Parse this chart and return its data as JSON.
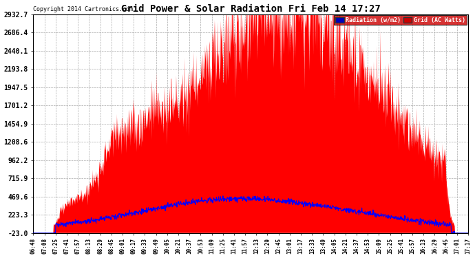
{
  "title": "Grid Power & Solar Radiation Fri Feb 14 17:27",
  "copyright": "Copyright 2014 Cartronics.com",
  "background_color": "#ffffff",
  "plot_bg_color": "#ffffff",
  "yticks": [
    -23.0,
    223.3,
    469.6,
    715.9,
    962.2,
    1208.6,
    1454.9,
    1701.2,
    1947.5,
    2193.8,
    2440.1,
    2686.4,
    2932.7
  ],
  "ymin": -23.0,
  "ymax": 2932.7,
  "legend_radiation_label": "Radiation (w/m2)",
  "legend_grid_label": "Grid (AC Watts)",
  "radiation_color": "#0000ff",
  "grid_fill_color": "#ff0000",
  "xtick_labels": [
    "06:48",
    "07:08",
    "07:25",
    "07:41",
    "07:57",
    "08:13",
    "08:29",
    "08:45",
    "09:01",
    "09:17",
    "09:33",
    "09:49",
    "10:05",
    "10:21",
    "10:37",
    "10:53",
    "11:09",
    "11:25",
    "11:41",
    "11:57",
    "12:13",
    "12:29",
    "12:45",
    "13:01",
    "13:17",
    "13:33",
    "13:49",
    "14:05",
    "14:21",
    "14:37",
    "14:53",
    "15:09",
    "15:25",
    "15:41",
    "15:57",
    "16:13",
    "16:29",
    "16:45",
    "17:01",
    "17:17"
  ]
}
